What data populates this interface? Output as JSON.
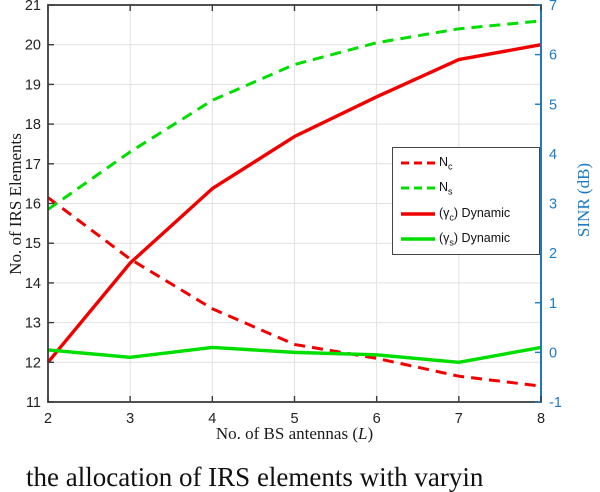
{
  "figure": {
    "caption_partial": "the allocation of IRS elements with varyin",
    "colors": {
      "red": "#f10000",
      "green": "#00de00",
      "axis_blue": "#1b7bc5",
      "grid": "#e2e2e2",
      "box": "#3c3c3c",
      "tick_text": "#222222"
    }
  },
  "chart_data": {
    "type": "line",
    "x": [
      2,
      3,
      4,
      5,
      6,
      7,
      8
    ],
    "xlim": [
      2,
      8
    ],
    "xticks": [
      2,
      3,
      4,
      5,
      6,
      7,
      8
    ],
    "ylim_left": [
      11,
      21
    ],
    "yticks_left": [
      11,
      12,
      13,
      14,
      15,
      16,
      17,
      18,
      19,
      20,
      21
    ],
    "ylim_right": [
      -1,
      7
    ],
    "yticks_right": [
      -1,
      0,
      1,
      2,
      3,
      4,
      5,
      6,
      7
    ],
    "grid": true,
    "xlabel": {
      "pre": "No. of BS antennas (",
      "var": "L",
      "post": ")"
    },
    "ylabel_left": "No. of IRS Elements",
    "ylabel_right": "SINR (dB)",
    "legend_position": "middle-right",
    "series": [
      {
        "name": "N_c",
        "axis": "left",
        "color": "red",
        "style": "dashed",
        "values": [
          16.15,
          14.6,
          13.35,
          12.45,
          12.1,
          11.65,
          11.4
        ]
      },
      {
        "name": "N_s",
        "axis": "left",
        "color": "green",
        "style": "dashed",
        "values": [
          15.85,
          17.3,
          18.6,
          19.5,
          20.05,
          20.4,
          20.6
        ]
      },
      {
        "name": "(gamma_c) Dynamic",
        "axis": "right",
        "color": "red",
        "style": "solid",
        "values": [
          -0.2,
          1.8,
          3.3,
          4.35,
          5.15,
          5.9,
          6.2
        ]
      },
      {
        "name": "(gamma_s) Dynamic",
        "axis": "right",
        "color": "green",
        "style": "solid",
        "values": [
          0.05,
          -0.1,
          0.1,
          0.0,
          -0.05,
          -0.2,
          0.1
        ]
      }
    ],
    "legend": [
      {
        "pre": "N",
        "sub": "c",
        "post": ""
      },
      {
        "pre": "N",
        "sub": "s",
        "post": ""
      },
      {
        "pre": "(γ",
        "sub": "c",
        "post": ") Dynamic"
      },
      {
        "pre": "(γ",
        "sub": "s",
        "post": ") Dynamic"
      }
    ]
  }
}
